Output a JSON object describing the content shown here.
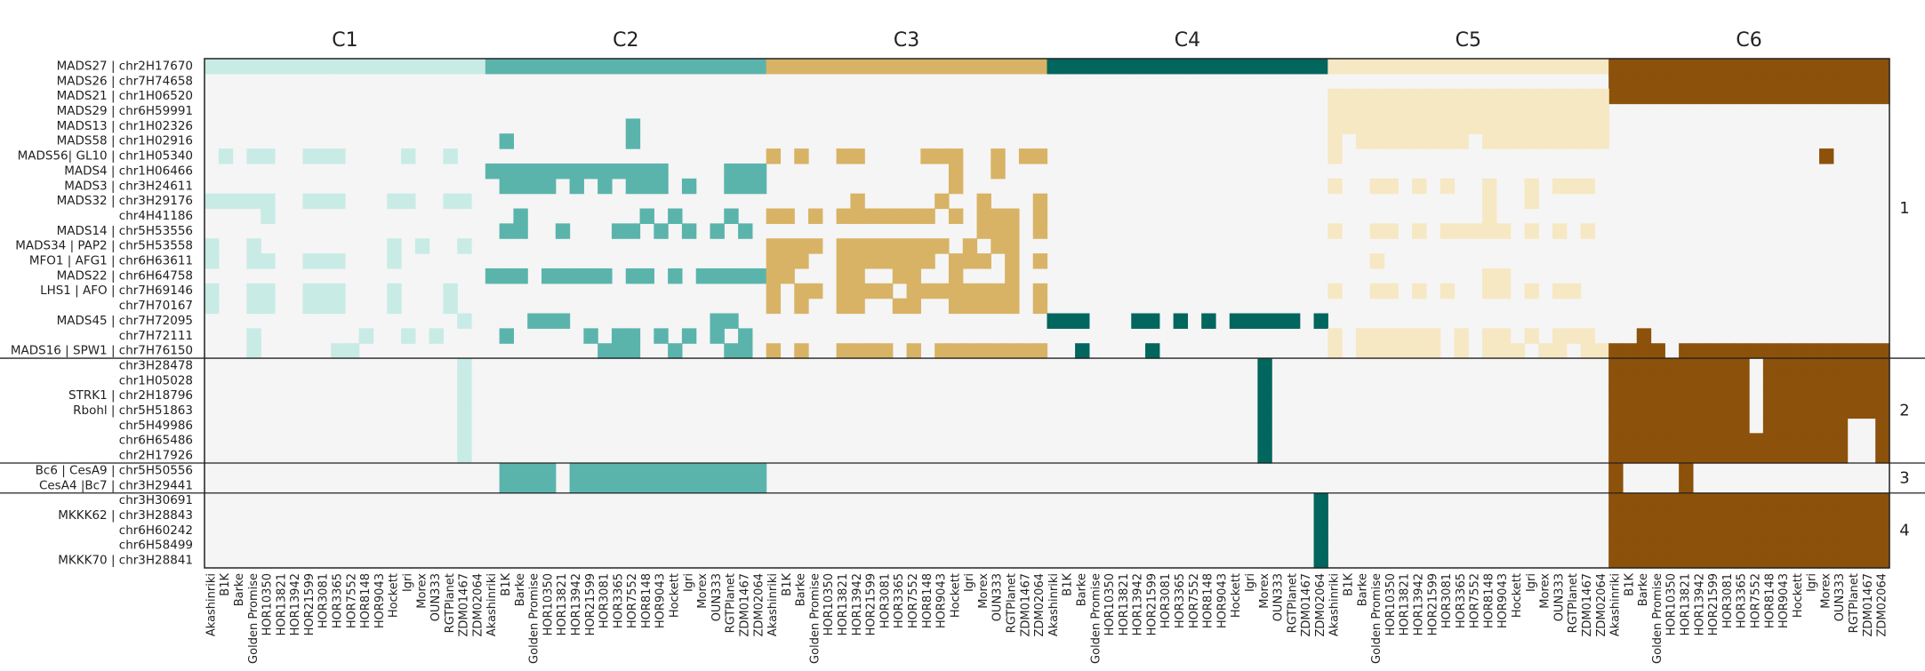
{
  "chart_data": {
    "type": "heatmap",
    "accessions": [
      "Akashinriki",
      "B1K",
      "Barke",
      "Golden Promise",
      "HOR10350",
      "HOR13821",
      "HOR13942",
      "HOR21599",
      "HOR3081",
      "HOR3365",
      "HOR7552",
      "HOR8148",
      "HOR9043",
      "Hockett",
      "Igri",
      "Morex",
      "OUN333",
      "RGTPlanet",
      "ZDM01467",
      "ZDM02064"
    ],
    "clusters": [
      {
        "label": "C1",
        "color": "#c8ebe5"
      },
      {
        "label": "C2",
        "color": "#5ab4ac"
      },
      {
        "label": "C3",
        "color": "#d8b365"
      },
      {
        "label": "C4",
        "color": "#01665e"
      },
      {
        "label": "C5",
        "color": "#f6e8c3"
      },
      {
        "label": "C6",
        "color": "#8c510a"
      }
    ],
    "background_color": "#f5f5f5",
    "rows": [
      {
        "label": "MADS27 | chr2H17670",
        "group": "1"
      },
      {
        "label": "MADS26 | chr7H74658",
        "group": "1"
      },
      {
        "label": "MADS21 | chr1H06520",
        "group": "1"
      },
      {
        "label": "MADS29 | chr6H59991",
        "group": "1"
      },
      {
        "label": "MADS13 | chr1H02326",
        "group": "1"
      },
      {
        "label": "MADS58 | chr1H02916",
        "group": "1"
      },
      {
        "label": "MADS56| GL10 | chr1H05340",
        "group": "1"
      },
      {
        "label": "MADS4 | chr1H06466",
        "group": "1"
      },
      {
        "label": "MADS3 | chr3H24611",
        "group": "1"
      },
      {
        "label": "MADS32 | chr3H29176",
        "group": "1"
      },
      {
        "label": "chr4H41186",
        "group": "1"
      },
      {
        "label": "MADS14 | chr5H53556",
        "group": "1"
      },
      {
        "label": "MADS34 | PAP2 | chr5H53558",
        "group": "1"
      },
      {
        "label": "MFO1 | AFG1 | chr6H63611",
        "group": "1"
      },
      {
        "label": "MADS22 | chr6H64758",
        "group": "1"
      },
      {
        "label": "LHS1 | AFO | chr7H69146",
        "group": "1"
      },
      {
        "label": "chr7H70167",
        "group": "1"
      },
      {
        "label": "MADS45 | chr7H72095",
        "group": "1"
      },
      {
        "label": "chr7H72111",
        "group": "1"
      },
      {
        "label": "MADS16 | SPW1 | chr7H76150",
        "group": "1"
      },
      {
        "label": "chr3H28478",
        "group": "2"
      },
      {
        "label": "chr1H05028",
        "group": "2"
      },
      {
        "label": "STRK1 | chr2H18796",
        "group": "2"
      },
      {
        "label": "Rbohl | chr5H51863",
        "group": "2"
      },
      {
        "label": "chr5H49986",
        "group": "2"
      },
      {
        "label": "chr6H65486",
        "group": "2"
      },
      {
        "label": "chr2H17926",
        "group": "2"
      },
      {
        "label": "Bc6 | CesA9 | chr5H50556",
        "group": "3"
      },
      {
        "label": "CesA4 |Bc7 | chr3H29441",
        "group": "3"
      },
      {
        "label": "chr3H30691",
        "group": "4"
      },
      {
        "label": "MKKK62 | chr3H28843",
        "group": "4"
      },
      {
        "label": "chr6H60242",
        "group": "4"
      },
      {
        "label": "chr6H58499",
        "group": "4"
      },
      {
        "label": "MKKK70 | chr3H28841",
        "group": "4"
      }
    ],
    "groups": [
      {
        "label": "1",
        "first_row": 0,
        "last_row": 19
      },
      {
        "label": "2",
        "first_row": 20,
        "last_row": 26
      },
      {
        "label": "3",
        "first_row": 27,
        "last_row": 28
      },
      {
        "label": "4",
        "first_row": 29,
        "last_row": 33
      }
    ],
    "cells": [
      {
        "row": 0,
        "cluster": 0,
        "cols": "0-19"
      },
      {
        "row": 0,
        "cluster": 1,
        "cols": "0-19"
      },
      {
        "row": 0,
        "cluster": 2,
        "cols": "0-19"
      },
      {
        "row": 0,
        "cluster": 3,
        "cols": "0-19"
      },
      {
        "row": 0,
        "cluster": 4,
        "cols": "0-19"
      },
      {
        "row": 0,
        "cluster": 5,
        "cols": "0-19"
      },
      {
        "row": 1,
        "cluster": 5,
        "cols": "0-19"
      },
      {
        "row": 2,
        "cluster": 5,
        "cols": "0-19"
      },
      {
        "row": 2,
        "cluster": 4,
        "cols": "0-19"
      },
      {
        "row": 3,
        "cluster": 4,
        "cols": "0-19"
      },
      {
        "row": 4,
        "cluster": 4,
        "cols": "0-19"
      },
      {
        "row": 5,
        "cluster": 4,
        "cols": "0,2-9,11-19"
      },
      {
        "row": 4,
        "cluster": 1,
        "cols": "10"
      },
      {
        "row": 5,
        "cluster": 1,
        "cols": "10"
      },
      {
        "row": 5,
        "cluster": 1,
        "cols": "1"
      },
      {
        "row": 6,
        "cluster": 0,
        "cols": "1,3,4,7,8,9,14,17"
      },
      {
        "row": 6,
        "cluster": 2,
        "cols": "0,2,5,6,11,12,13,16,18,19"
      },
      {
        "row": 6,
        "cluster": 4,
        "cols": "0"
      },
      {
        "row": 6,
        "cluster": 5,
        "cols": "15"
      },
      {
        "row": 7,
        "cluster": 1,
        "cols": "0-12,17-19"
      },
      {
        "row": 7,
        "cluster": 2,
        "cols": "13,16"
      },
      {
        "row": 8,
        "cluster": 1,
        "cols": "1-4,6,8,10-12,14,17-19"
      },
      {
        "row": 8,
        "cluster": 2,
        "cols": "13"
      },
      {
        "row": 8,
        "cluster": 4,
        "cols": "0,3,4,6,8,11,14,16-18"
      },
      {
        "row": 9,
        "cluster": 0,
        "cols": "0-4,7-9,13,14,17,18"
      },
      {
        "row": 9,
        "cluster": 2,
        "cols": "6,12,15,19"
      },
      {
        "row": 9,
        "cluster": 4,
        "cols": "11,14"
      },
      {
        "row": 10,
        "cluster": 0,
        "cols": "4"
      },
      {
        "row": 10,
        "cluster": 1,
        "cols": "2,11,13,17"
      },
      {
        "row": 10,
        "cluster": 2,
        "cols": "0,1,3,5-11,13,15-17,19"
      },
      {
        "row": 10,
        "cluster": 4,
        "cols": "11"
      },
      {
        "row": 11,
        "cluster": 1,
        "cols": "1,2,5,9,10,12,14,16,18"
      },
      {
        "row": 11,
        "cluster": 2,
        "cols": "15-17,19"
      },
      {
        "row": 11,
        "cluster": 4,
        "cols": "0,3,4,6,8-10,11,12,14,16,18"
      },
      {
        "row": 12,
        "cluster": 0,
        "cols": "0,3,13,15,18"
      },
      {
        "row": 12,
        "cluster": 2,
        "cols": "0-3,5-12,14,16,17"
      },
      {
        "row": 13,
        "cluster": 0,
        "cols": "0,3,4,7-9,13"
      },
      {
        "row": 13,
        "cluster": 2,
        "cols": "0-2,5-11,13-15,17,19"
      },
      {
        "row": 13,
        "cluster": 4,
        "cols": "3"
      },
      {
        "row": 14,
        "cluster": 1,
        "cols": "0-2,4-8,10,11,13,15-19"
      },
      {
        "row": 14,
        "cluster": 2,
        "cols": "0,1,5,6,9,10,13,17"
      },
      {
        "row": 14,
        "cluster": 4,
        "cols": "11,12"
      },
      {
        "row": 15,
        "cluster": 0,
        "cols": "0,3,4,7-9,13,17"
      },
      {
        "row": 15,
        "cluster": 2,
        "cols": "0,2,3,5-8,10-13,14-17,19"
      },
      {
        "row": 15,
        "cluster": 4,
        "cols": "0,3,4,6,8,11,12,14,16,17"
      },
      {
        "row": 16,
        "cluster": 0,
        "cols": "0,3,4,7-9,13,17"
      },
      {
        "row": 16,
        "cluster": 2,
        "cols": "0,2,5,6,9,10,13,14,15,16,17,19"
      },
      {
        "row": 17,
        "cluster": 0,
        "cols": "18"
      },
      {
        "row": 17,
        "cluster": 1,
        "cols": "3-5,16,17"
      },
      {
        "row": 17,
        "cluster": 3,
        "cols": "0-2,6,7,9,11,13-17,19"
      },
      {
        "row": 18,
        "cluster": 0,
        "cols": "3,11,14,16"
      },
      {
        "row": 18,
        "cluster": 1,
        "cols": "1,7,9,10,12,14,16,18"
      },
      {
        "row": 18,
        "cluster": 4,
        "cols": "0,2-7,9,11,12,14,16-18"
      },
      {
        "row": 19,
        "cluster": 0,
        "cols": "3,9,10"
      },
      {
        "row": 19,
        "cluster": 1,
        "cols": "8-10,13,17,18"
      },
      {
        "row": 19,
        "cluster": 2,
        "cols": "0,2,5-8,10,12-19"
      },
      {
        "row": 19,
        "cluster": 3,
        "cols": "2,7"
      },
      {
        "row": 19,
        "cluster": 4,
        "cols": "0,2-7,9,11-13,15,16,18,19"
      },
      {
        "row": 19,
        "cluster": 5,
        "cols": "0-3,5-19"
      },
      {
        "row": 18,
        "cluster": 5,
        "cols": "2"
      },
      {
        "row": 20,
        "cluster": 0,
        "cols": "18"
      },
      {
        "row": 20,
        "cluster": 3,
        "cols": "15"
      },
      {
        "row": 20,
        "cluster": 5,
        "cols": "0-9,11-19"
      },
      {
        "row": 21,
        "cluster": 0,
        "cols": "18"
      },
      {
        "row": 21,
        "cluster": 3,
        "cols": "15"
      },
      {
        "row": 21,
        "cluster": 5,
        "cols": "0-9,11-19"
      },
      {
        "row": 22,
        "cluster": 0,
        "cols": "18"
      },
      {
        "row": 22,
        "cluster": 3,
        "cols": "15"
      },
      {
        "row": 22,
        "cluster": 5,
        "cols": "0-9,11-19"
      },
      {
        "row": 23,
        "cluster": 0,
        "cols": "18"
      },
      {
        "row": 23,
        "cluster": 3,
        "cols": "15"
      },
      {
        "row": 23,
        "cluster": 5,
        "cols": "0-9,11-19"
      },
      {
        "row": 24,
        "cluster": 0,
        "cols": "18"
      },
      {
        "row": 24,
        "cluster": 3,
        "cols": "15"
      },
      {
        "row": 24,
        "cluster": 5,
        "cols": "0-9,11-16,19"
      },
      {
        "row": 25,
        "cluster": 0,
        "cols": "18"
      },
      {
        "row": 25,
        "cluster": 3,
        "cols": "15"
      },
      {
        "row": 25,
        "cluster": 5,
        "cols": "0-10,11-16,19"
      },
      {
        "row": 26,
        "cluster": 0,
        "cols": "18"
      },
      {
        "row": 26,
        "cluster": 3,
        "cols": "15"
      },
      {
        "row": 26,
        "cluster": 5,
        "cols": "0-16,19"
      },
      {
        "row": 27,
        "cluster": 1,
        "cols": "1-4,6-19"
      },
      {
        "row": 27,
        "cluster": 5,
        "cols": "0,5"
      },
      {
        "row": 28,
        "cluster": 1,
        "cols": "1-4,6-19"
      },
      {
        "row": 28,
        "cluster": 5,
        "cols": "0,5"
      },
      {
        "row": 29,
        "cluster": 3,
        "cols": "19"
      },
      {
        "row": 29,
        "cluster": 5,
        "cols": "0-19"
      },
      {
        "row": 30,
        "cluster": 3,
        "cols": "19"
      },
      {
        "row": 30,
        "cluster": 5,
        "cols": "0-19"
      },
      {
        "row": 31,
        "cluster": 3,
        "cols": "19"
      },
      {
        "row": 31,
        "cluster": 5,
        "cols": "0-19"
      },
      {
        "row": 32,
        "cluster": 3,
        "cols": "19"
      },
      {
        "row": 32,
        "cluster": 5,
        "cols": "0-19"
      },
      {
        "row": 33,
        "cluster": 3,
        "cols": "19"
      },
      {
        "row": 33,
        "cluster": 5,
        "cols": "0-19"
      }
    ]
  }
}
